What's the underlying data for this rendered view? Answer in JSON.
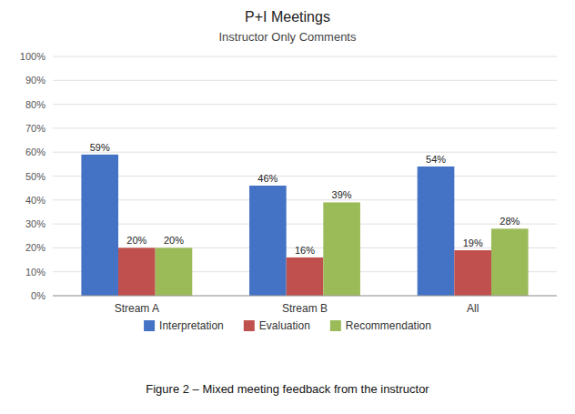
{
  "chart_data": {
    "type": "bar",
    "title": "P+I Meetings",
    "subtitle": "Instructor Only Comments",
    "caption": "Figure 2 – Mixed meeting feedback from the instructor",
    "categories": [
      "Stream A",
      "Stream B",
      "All"
    ],
    "series": [
      {
        "name": "Interpretation",
        "color": "#4472C4",
        "values": [
          59,
          46,
          54
        ],
        "value_labels": [
          "59%",
          "46%",
          "54%"
        ]
      },
      {
        "name": "Evaluation",
        "color": "#C0504D",
        "values": [
          20,
          16,
          19
        ],
        "value_labels": [
          "20%",
          "16%",
          "19%"
        ]
      },
      {
        "name": "Recommendation",
        "color": "#9BBB59",
        "values": [
          20,
          39,
          28
        ],
        "value_labels": [
          "20%",
          "39%",
          "28%"
        ]
      }
    ],
    "ylim": [
      0,
      100
    ],
    "yticks": [
      {
        "value": 0,
        "label": "0%"
      },
      {
        "value": 10,
        "label": "10%"
      },
      {
        "value": 20,
        "label": "20%"
      },
      {
        "value": 30,
        "label": "30%"
      },
      {
        "value": 40,
        "label": "40%"
      },
      {
        "value": 50,
        "label": "50%"
      },
      {
        "value": 60,
        "label": "60%"
      },
      {
        "value": 70,
        "label": "70%"
      },
      {
        "value": 80,
        "label": "80%"
      },
      {
        "value": 90,
        "label": "90%"
      },
      {
        "value": 100,
        "label": "100%"
      }
    ],
    "grid": true,
    "legend": "bottom",
    "data_labels": true
  }
}
